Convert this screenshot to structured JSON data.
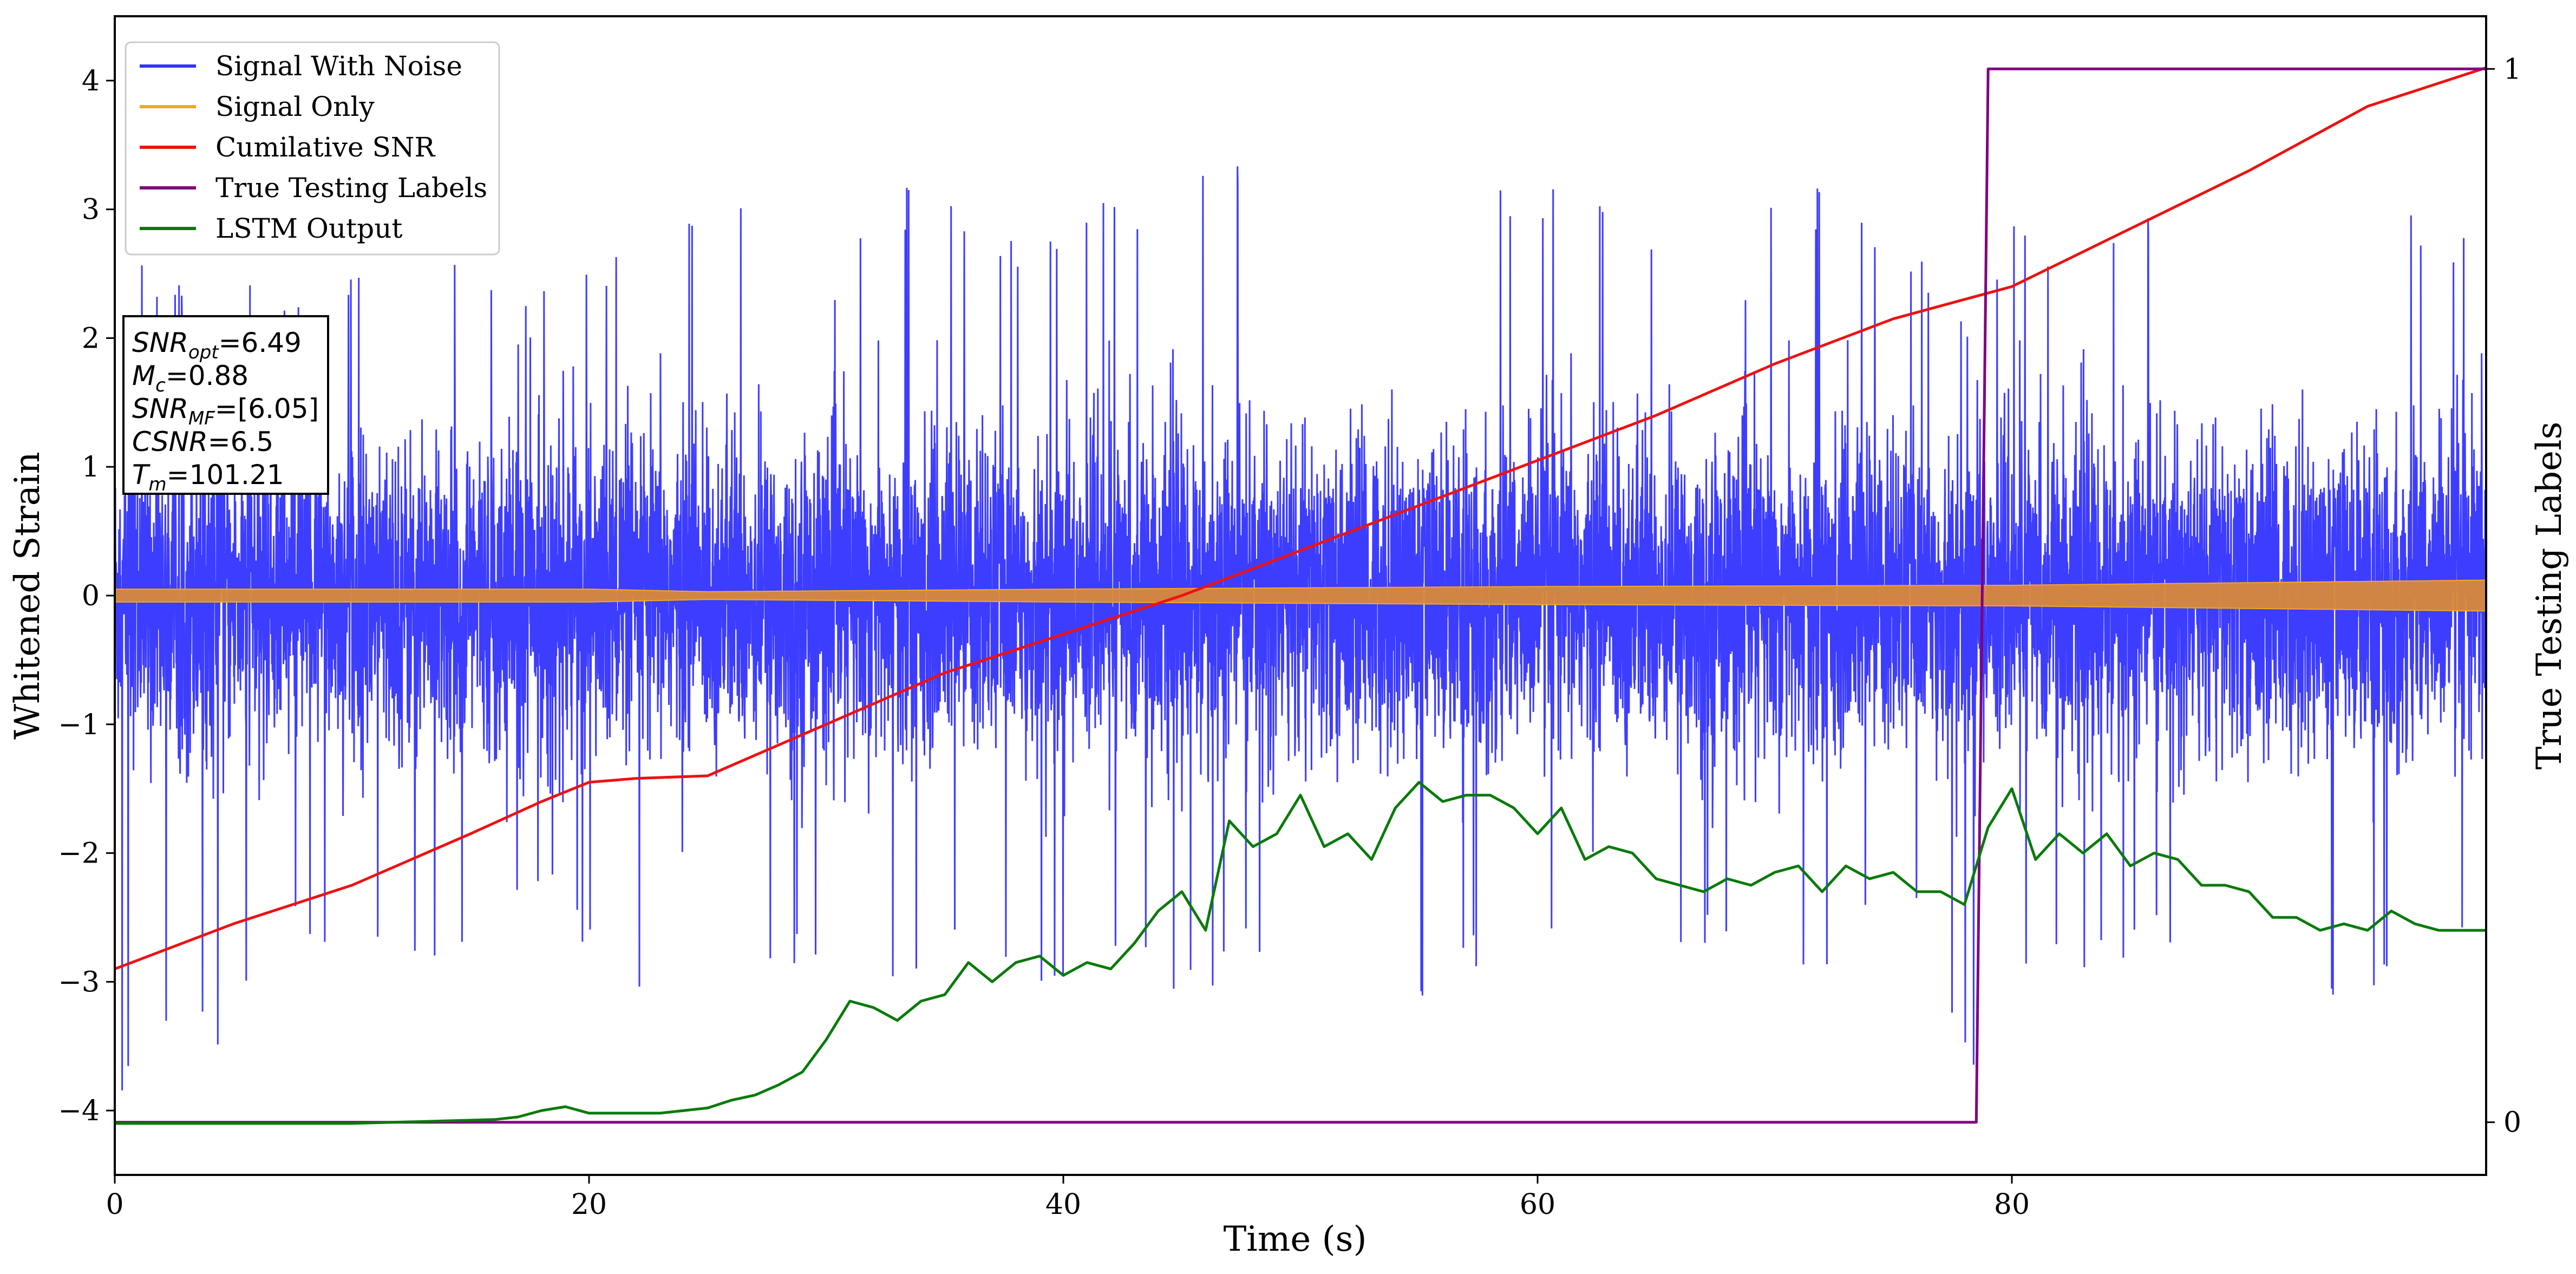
{
  "chart_data": {
    "type": "line",
    "xlabel": "Time (s)",
    "ylabel": "Whitened Strain",
    "y2label": "True Testing Labels",
    "xlim": [
      0,
      100
    ],
    "ylim": [
      -4.5,
      4.5
    ],
    "y2lim": [
      -0.05,
      1.05
    ],
    "xticks": [
      "0",
      "20",
      "40",
      "60",
      "80"
    ],
    "yticks": [
      "−4",
      "−3",
      "−2",
      "−1",
      "0",
      "1",
      "2",
      "3",
      "4"
    ],
    "y2ticks": [
      "0",
      "1"
    ],
    "legend_position": "top-left",
    "grid": false,
    "series": [
      {
        "name": "Signal With Noise",
        "color": "#3333ff",
        "axis": "left",
        "style": "dense noise, mostly within ±1.5, spikes to about ±3.7",
        "x": [
          0,
          8,
          14,
          18,
          22,
          27,
          31,
          34,
          38,
          44,
          49,
          52,
          56,
          60,
          66,
          72,
          76,
          78.5,
          80,
          84,
          88,
          92,
          95,
          97,
          100
        ],
        "peaks_high": [
          2.6,
          2.4,
          2.6,
          2.6,
          2.7,
          3.65,
          2.9,
          3.4,
          3.0,
          3.3,
          3.5,
          3.2,
          3.2,
          3.4,
          3.1,
          3.3,
          2.9,
          2.2,
          3.0,
          2.8,
          3.3,
          2.9,
          3.3,
          3.1,
          2.9
        ],
        "peaks_low": [
          -4.1,
          -3.0,
          -3.2,
          -2.4,
          -3.4,
          -2.9,
          -3.1,
          -2.9,
          -3.0,
          -3.1,
          -3.0,
          -3.4,
          -3.1,
          -2.7,
          -2.8,
          -2.9,
          -2.5,
          -3.8,
          -3.3,
          -2.8,
          -3.0,
          -2.9,
          -3.4,
          -2.9,
          -2.6
        ]
      },
      {
        "name": "Signal Only",
        "color": "#f5a623",
        "axis": "left",
        "style": "thin chirp band around 0, amplitude growing to about ±0.1",
        "x": [
          0,
          20,
          25,
          40,
          60,
          80,
          100
        ],
        "amplitude": [
          0.05,
          0.05,
          0.03,
          0.05,
          0.07,
          0.08,
          0.12
        ]
      },
      {
        "name": "Cumilative SNR",
        "color": "#ee1111",
        "axis": "left",
        "x": [
          0,
          5,
          10,
          15,
          18,
          20,
          22,
          25,
          30,
          35,
          40,
          45,
          50,
          55,
          60,
          65,
          70,
          75,
          78,
          80,
          85,
          90,
          95,
          100
        ],
        "y": [
          -2.9,
          -2.55,
          -2.25,
          -1.85,
          -1.6,
          -1.45,
          -1.42,
          -1.4,
          -1.0,
          -0.6,
          -0.3,
          0.0,
          0.35,
          0.7,
          1.05,
          1.4,
          1.8,
          2.15,
          2.3,
          2.4,
          2.85,
          3.3,
          3.8,
          4.1
        ]
      },
      {
        "name": "True Testing Labels",
        "color": "#800080",
        "axis": "right",
        "x": [
          0,
          78.5,
          79,
          100
        ],
        "y": [
          0,
          0,
          1,
          1
        ]
      },
      {
        "name": "LSTM Output",
        "color": "#0a7a0a",
        "axis": "left",
        "x": [
          0,
          10,
          14,
          16,
          17,
          18,
          19,
          20,
          21,
          23,
          25,
          26,
          27,
          28,
          29,
          30,
          31,
          32,
          33,
          34,
          35,
          36,
          37,
          38,
          39,
          40,
          41,
          42,
          43,
          44,
          45,
          46,
          47,
          48,
          49,
          50,
          51,
          52,
          53,
          54,
          55,
          56,
          57,
          58,
          59,
          60,
          61,
          62,
          63,
          64,
          65,
          66,
          67,
          68,
          69,
          70,
          71,
          72,
          73,
          74,
          75,
          76,
          77,
          78,
          79,
          80,
          81,
          82,
          83,
          84,
          85,
          86,
          87,
          88,
          89,
          90,
          91,
          92,
          93,
          94,
          95,
          96,
          97,
          98,
          99,
          100
        ],
        "y": [
          -4.1,
          -4.1,
          -4.08,
          -4.07,
          -4.05,
          -4.0,
          -3.97,
          -4.02,
          -4.02,
          -4.02,
          -3.98,
          -3.92,
          -3.88,
          -3.8,
          -3.7,
          -3.45,
          -3.15,
          -3.2,
          -3.3,
          -3.15,
          -3.1,
          -2.85,
          -3.0,
          -2.85,
          -2.8,
          -2.95,
          -2.85,
          -2.9,
          -2.7,
          -2.45,
          -2.3,
          -2.6,
          -1.75,
          -1.95,
          -1.85,
          -1.55,
          -1.95,
          -1.85,
          -2.05,
          -1.65,
          -1.45,
          -1.6,
          -1.55,
          -1.55,
          -1.65,
          -1.85,
          -1.65,
          -2.05,
          -1.95,
          -2.0,
          -2.2,
          -2.25,
          -2.3,
          -2.2,
          -2.25,
          -2.15,
          -2.1,
          -2.3,
          -2.1,
          -2.2,
          -2.15,
          -2.3,
          -2.3,
          -2.4,
          -1.8,
          -1.5,
          -2.05,
          -1.85,
          -2.0,
          -1.85,
          -2.1,
          -2.0,
          -2.05,
          -2.25,
          -2.25,
          -2.3,
          -2.5,
          -2.5,
          -2.6,
          -2.55,
          -2.6,
          -2.45,
          -2.55,
          -2.6,
          -2.6,
          -2.6
        ]
      }
    ],
    "annotation": {
      "lines": [
        {
          "label": "SNR",
          "sub": "opt",
          "value": "=6.49"
        },
        {
          "label": "M",
          "sub": "c",
          "value": "=0.88"
        },
        {
          "label": "SNR",
          "sub": "MF",
          "value": "=[6.05]"
        },
        {
          "label": "CSNR",
          "sub": "",
          "value": "=6.5"
        },
        {
          "label": "T",
          "sub": "m",
          "value": "=101.21"
        }
      ]
    }
  }
}
